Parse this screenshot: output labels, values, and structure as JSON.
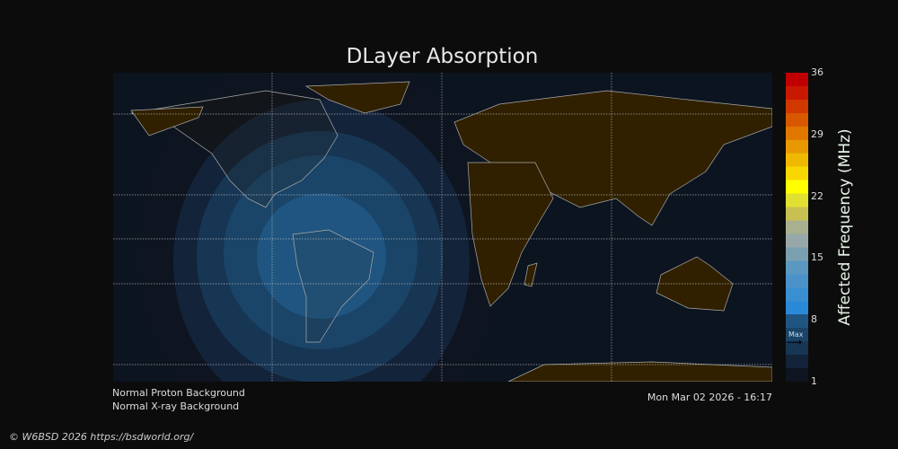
{
  "title": "DLayer Absorption",
  "colorbar": {
    "label": "Affected Frequency (MHz)",
    "ticks": [
      "36",
      "29",
      "22",
      "15",
      "8",
      "1"
    ],
    "range": [
      1,
      36
    ],
    "max_marker_label": "Max",
    "max_marker_value": 5.5,
    "colors": [
      "#0e1520",
      "#13233a",
      "#173654",
      "#1a4468",
      "#1f5580",
      "#2a88d8",
      "#3a8fd0",
      "#4a92c8",
      "#5a98c0",
      "#7aa0b0",
      "#98a8a8",
      "#a8b090",
      "#c8c050",
      "#e0e030",
      "#ffff00",
      "#f8d800",
      "#f0b800",
      "#e89800",
      "#e07800",
      "#d85800",
      "#d03800",
      "#c81800",
      "#c00000"
    ]
  },
  "info": {
    "proton": "Normal Proton Background",
    "xray": "Normal X-ray Background",
    "timestamp": "Mon Mar 02 2026 - 16:17"
  },
  "copyright": "© W6BSD 2026 https://bsdworld.org/",
  "map_colors": {
    "ocean": "#0c1420",
    "land": "#302000",
    "coast": "#aaaaaa",
    "grid": "#cccccc"
  }
}
